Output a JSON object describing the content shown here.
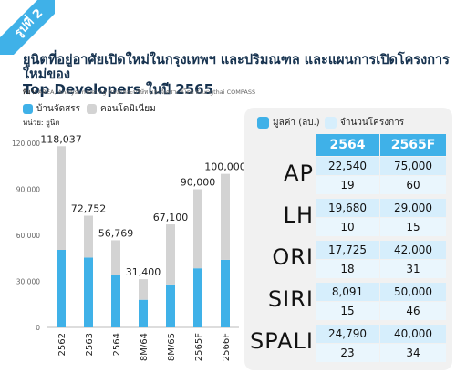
{
  "badge": "รูปที่ 2",
  "title_line1": "ยูนิตที่อยู่อาศัยเปิดใหม่ในกรุงเทพฯ และปริมณฑล และแผนการเปิดโครงการใหม่ของ",
  "title_line2": "Top Developers ในปี 2565",
  "source_label": "ที่มา:",
  "source_text": "AREA, Analyst meeting ของแต่ละบริษัท และวิเคราะห์โดย Krungthai COMPASS",
  "unit": "หน่วย: ยูนิต",
  "colors": {
    "accent": "#3fb1e8",
    "grey": "#d3d3d3",
    "val_cell": "#d6eefc",
    "cnt_cell": "#eaf6fd"
  },
  "chart_data": {
    "type": "bar",
    "stacked": true,
    "categories": [
      "2562",
      "2563",
      "2564",
      "8M/64",
      "8M/65",
      "2565F",
      "2566F"
    ],
    "series": [
      {
        "name": "บ้านจัดสรร",
        "color": "#3fb1e8",
        "values": [
          50500,
          45500,
          34000,
          18000,
          28000,
          38500,
          44000
        ]
      },
      {
        "name": "คอนโดมิเนียม",
        "color": "#d3d3d3",
        "values": [
          67537,
          27252,
          22769,
          13400,
          39100,
          51500,
          56000
        ]
      }
    ],
    "totals": [
      118037,
      72752,
      56769,
      31400,
      67100,
      90000,
      100000
    ],
    "total_labels": [
      "118,037",
      "72,752",
      "56,769",
      "31,400",
      "67,100",
      "90,000",
      "100,000"
    ],
    "yticks": [
      "0",
      "30,000",
      "60,000",
      "90,000",
      "120,000"
    ],
    "ylim": [
      0,
      120000
    ],
    "legend": [
      "บ้านจัดสรร",
      "คอนโดมิเนียม"
    ]
  },
  "table": {
    "legend": [
      "มูลค่า (ลบ.)",
      "จำนวนโครงการ"
    ],
    "headers": [
      "2564",
      "2565F"
    ],
    "rows": [
      {
        "name": "AP",
        "value_2564": "22,540",
        "value_2565F": "75,000",
        "count_2564": "19",
        "count_2565F": "60"
      },
      {
        "name": "LH",
        "value_2564": "19,680",
        "value_2565F": "29,000",
        "count_2564": "10",
        "count_2565F": "15"
      },
      {
        "name": "ORI",
        "value_2564": "17,725",
        "value_2565F": "42,000",
        "count_2564": "18",
        "count_2565F": "31"
      },
      {
        "name": "SIRI",
        "value_2564": "8,091",
        "value_2565F": "50,000",
        "count_2564": "15",
        "count_2565F": "46"
      },
      {
        "name": "SPALI",
        "value_2564": "24,790",
        "value_2565F": "40,000",
        "count_2564": "23",
        "count_2565F": "34"
      }
    ]
  }
}
